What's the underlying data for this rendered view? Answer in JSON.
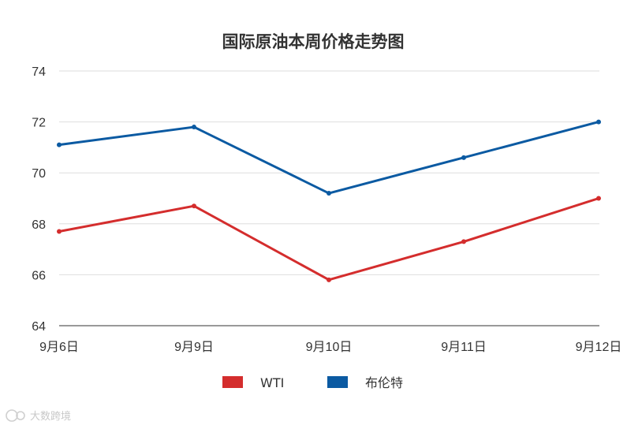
{
  "chart_data": {
    "type": "line",
    "title": "国际原油本周价格走势图",
    "categories": [
      "9月6日",
      "9月9日",
      "9月10日",
      "9月11日",
      "9月12日"
    ],
    "series": [
      {
        "name": "WTI",
        "color": "#d42d2d",
        "values": [
          67.7,
          68.7,
          65.8,
          67.3,
          69.0
        ]
      },
      {
        "name": "布伦特",
        "color": "#0b5aa2",
        "values": [
          71.1,
          71.8,
          69.2,
          70.6,
          72.0
        ]
      }
    ],
    "ylim": [
      64,
      74
    ],
    "yticks": [
      64,
      66,
      68,
      70,
      72,
      74
    ],
    "grid": true,
    "legend": "bottom"
  },
  "watermark": {
    "text": "大数跨境"
  }
}
